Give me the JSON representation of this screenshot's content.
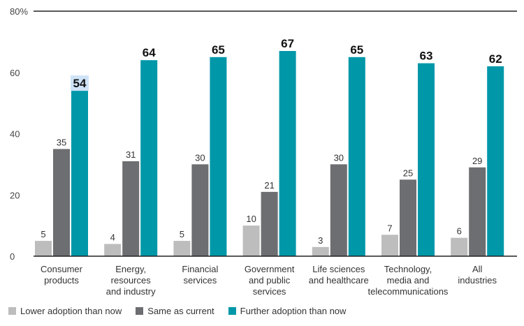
{
  "chart_data": {
    "type": "bar",
    "categories": [
      "Consumer\nproducts",
      "Energy,\nresources\nand industry",
      "Financial\nservices",
      "Government\nand public\nservices",
      "Life sciences\nand healthcare",
      "Technology,\nmedia and\ntelecommunications",
      "All\nindustries"
    ],
    "series": [
      {
        "name": "Lower adoption than now",
        "color": "#bdbdbd",
        "values": [
          5,
          4,
          5,
          10,
          3,
          7,
          6
        ]
      },
      {
        "name": "Same as current",
        "color": "#6d6e71",
        "values": [
          35,
          31,
          30,
          21,
          30,
          25,
          29
        ]
      },
      {
        "name": "Further adoption than now",
        "color": "#0097a9",
        "values": [
          54,
          64,
          65,
          67,
          65,
          63,
          62
        ]
      }
    ],
    "ylim": [
      0,
      80
    ],
    "yticks": [
      "0",
      "20",
      "40",
      "60",
      "80%"
    ],
    "ytick_values": [
      0,
      20,
      40,
      60,
      80
    ],
    "legend_position": "bottom-left",
    "grid": false,
    "highlighted_label_color": "#cfe3f7"
  }
}
